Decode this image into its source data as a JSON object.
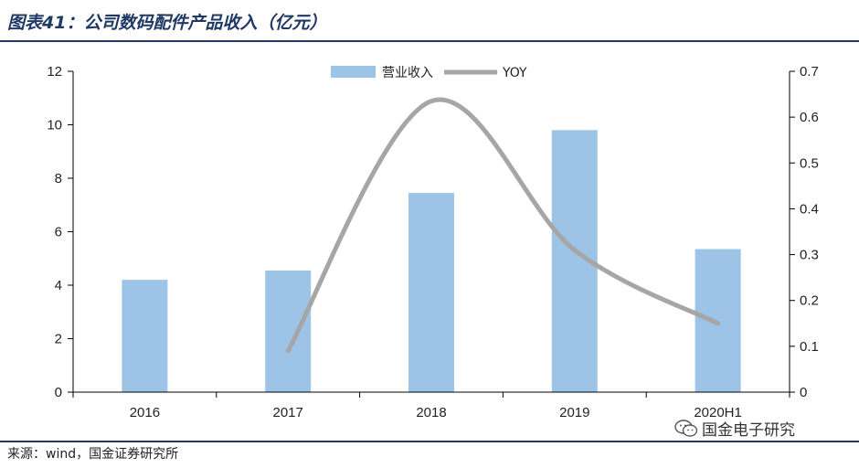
{
  "header": {
    "title": "图表41：公司数码配件产品收入（亿元）"
  },
  "footer": {
    "source": "来源：wind，国金证券研究所",
    "watermark": "国金电子研究"
  },
  "icons": {
    "watermark_icon": "wechat-icon"
  },
  "chart_data": {
    "type": "bar+line",
    "title": "公司数码配件产品收入（亿元）",
    "categories": [
      "2016",
      "2017",
      "2018",
      "2019",
      "2020H1"
    ],
    "series": [
      {
        "name": "营业收入",
        "type": "bar",
        "axis": "left",
        "color": "#9dc3e6",
        "values": [
          4.2,
          4.55,
          7.45,
          9.8,
          5.35
        ]
      },
      {
        "name": "YOY",
        "type": "line",
        "axis": "right",
        "color": "#a6a6a6",
        "values": [
          null,
          0.09,
          0.635,
          0.31,
          0.15
        ]
      }
    ],
    "y_left": {
      "min": 0,
      "max": 12,
      "ticks": [
        "0",
        "2",
        "4",
        "6",
        "8",
        "10",
        "12"
      ]
    },
    "y_right": {
      "min": 0,
      "max": 0.7,
      "ticks": [
        "0",
        "0.1",
        "0.2",
        "0.3",
        "0.4",
        "0.5",
        "0.6",
        "0.7"
      ]
    },
    "legend_position": "top-center"
  }
}
